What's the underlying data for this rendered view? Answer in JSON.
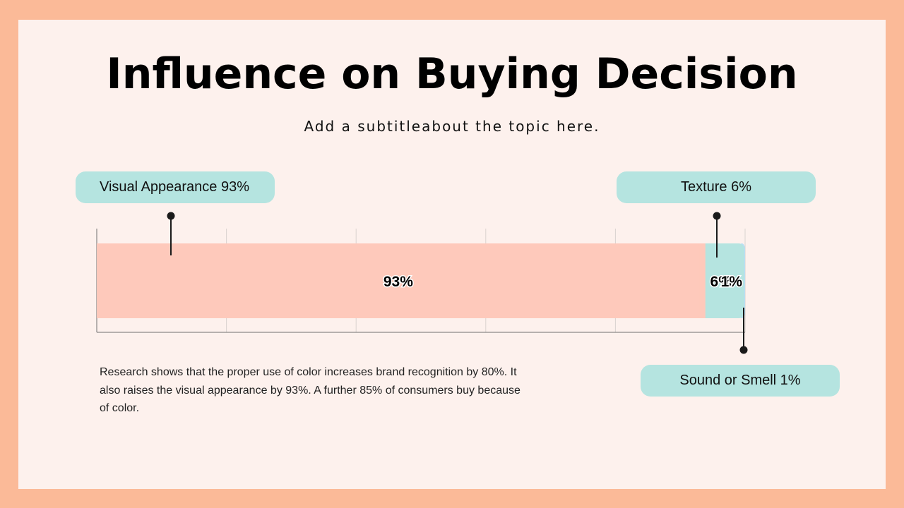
{
  "slide": {
    "title": "Influence on Buying Decision",
    "subtitle": "Add a subtitleabout the topic here.",
    "body": "Research shows that the proper use of color increases brand recognition by 80%. It also raises the visual appearance by 93%. A further 85% of consumers buy because of color."
  },
  "callouts": {
    "visual": "Visual Appearance 93%",
    "texture": "Texture 6%",
    "sound": "Sound or Smell 1%"
  },
  "colors": {
    "background": "#FDF1ED",
    "frame": "#FBBA98",
    "callout_fill": "#B5E4E0"
  },
  "chart_data": {
    "type": "bar",
    "orientation": "horizontal",
    "stacked": true,
    "xlim": [
      0,
      100
    ],
    "grid": true,
    "categories": [
      ""
    ],
    "series": [
      {
        "name": "Visual Appearance",
        "values": [
          93
        ],
        "label": "93%",
        "color": "#FEC9BB"
      },
      {
        "name": "Texture",
        "values": [
          6
        ],
        "label": "6%",
        "color": "#B5E4E0"
      },
      {
        "name": "Sound or Smell",
        "values": [
          1
        ],
        "label": "1%",
        "color": "#B9DEF5"
      }
    ]
  }
}
